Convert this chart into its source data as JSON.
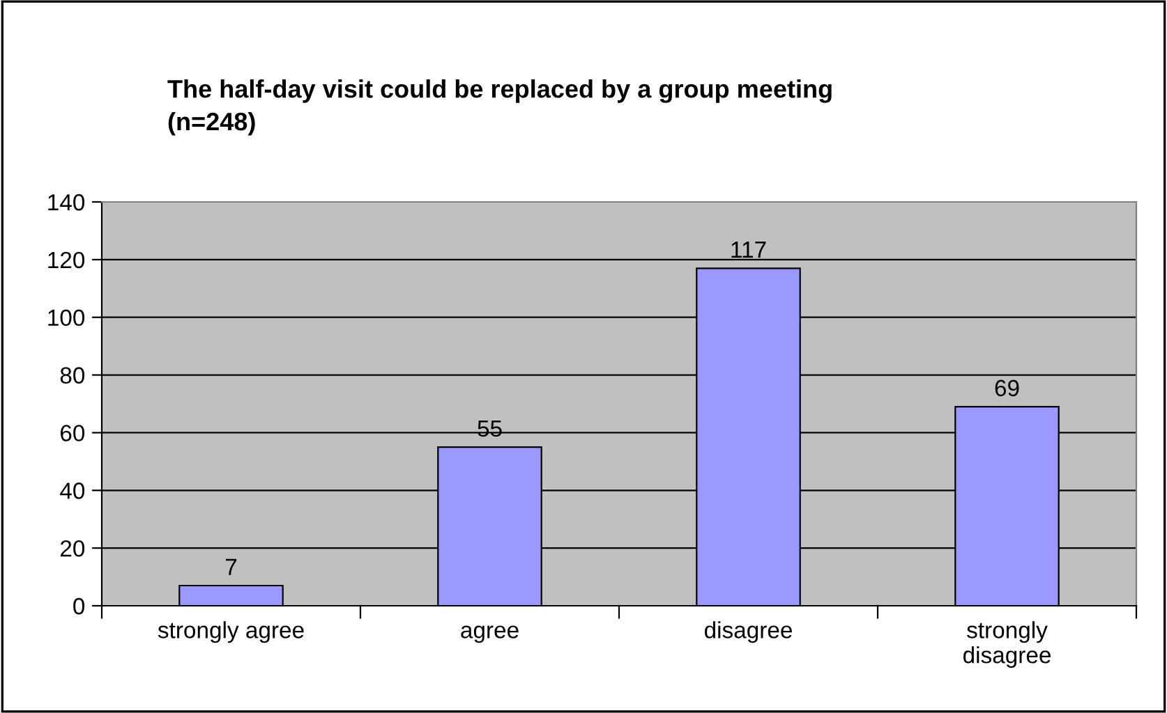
{
  "chart_data": {
    "type": "bar",
    "title": "The half-day visit could be replaced by a group meeting\n(n=248)",
    "categories": [
      "strongly agree",
      "agree",
      "disagree",
      "strongly\ndisagree"
    ],
    "values": [
      7,
      55,
      117,
      69
    ],
    "color": "#9999ff",
    "ylim": [
      0,
      140
    ],
    "yticks": [
      0,
      20,
      40,
      60,
      80,
      100,
      120,
      140
    ],
    "grid": "y",
    "data_labels": true,
    "legend": false
  }
}
